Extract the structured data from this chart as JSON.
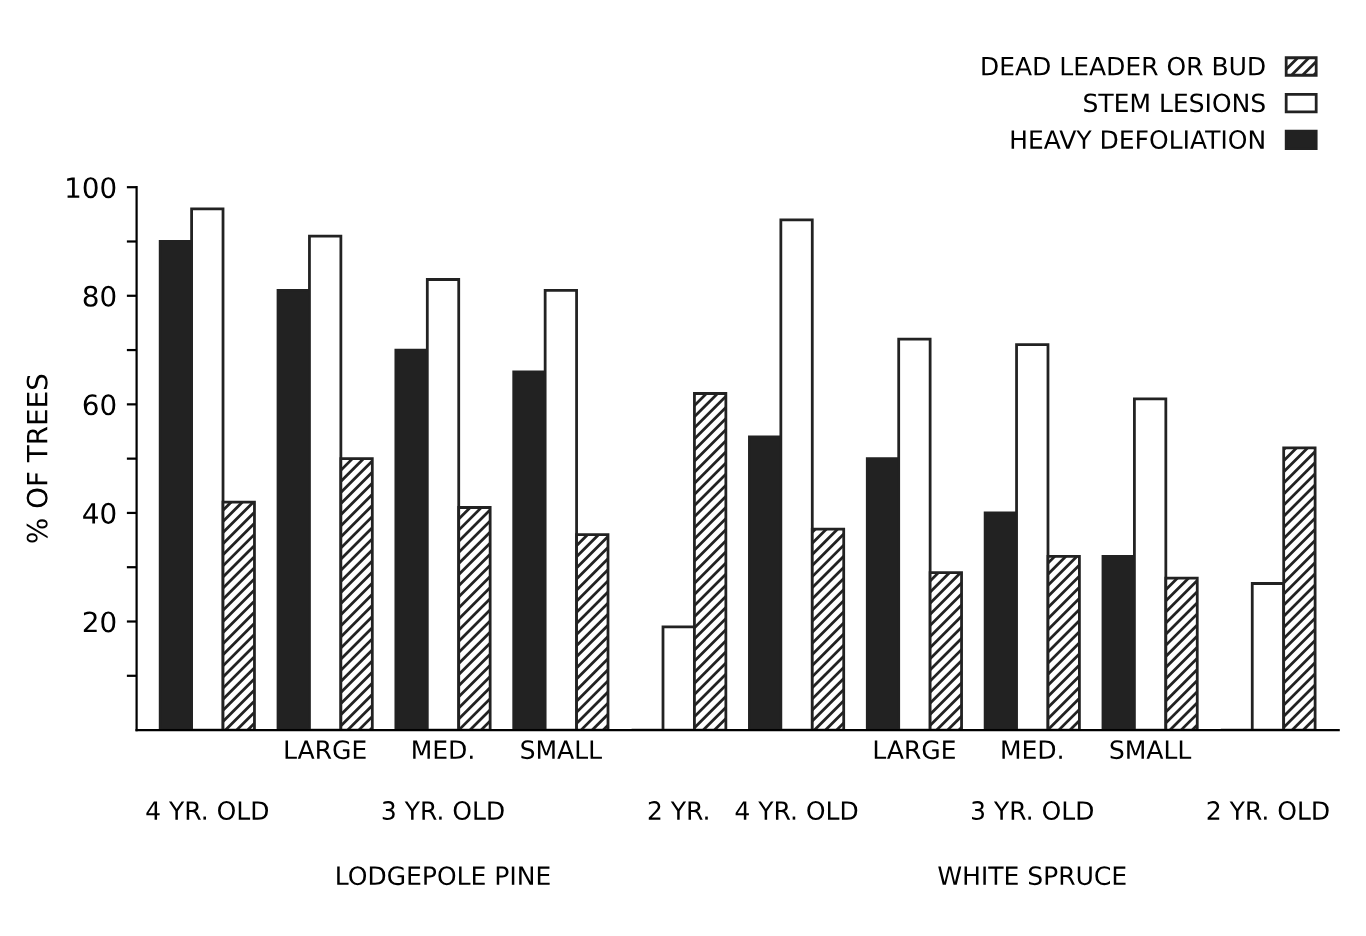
{
  "chart_data": {
    "type": "bar",
    "ylabel": "% OF TREES",
    "categories": [
      null,
      "LARGE",
      "MED.",
      "SMALL",
      null,
      null,
      "LARGE",
      "MED.",
      "SMALL",
      null
    ],
    "series": [
      {
        "name": "HEAVY DEFOLIATION",
        "color": "#222222",
        "values": [
          90,
          81,
          70,
          66,
          0,
          54,
          50,
          40,
          32,
          0
        ]
      },
      {
        "name": "STEM LESIONS",
        "color": "#ffffff",
        "values": [
          96,
          91,
          83,
          81,
          19,
          94,
          72,
          71,
          61,
          27
        ]
      },
      {
        "name": "DEAD LEADER OR BUD",
        "color": "#222222",
        "values": [
          42,
          50,
          41,
          36,
          62,
          37,
          29,
          32,
          28,
          52
        ]
      }
    ],
    "ylim": [
      0,
      100
    ],
    "yticks": [
      {
        "value": 10,
        "label": null
      },
      20,
      {
        "value": 30,
        "label": null
      },
      40,
      {
        "value": 50,
        "label": null
      },
      60,
      {
        "value": 70,
        "label": null
      },
      80,
      {
        "value": 90,
        "label": null
      },
      100
    ],
    "grid": false,
    "legend": "top right",
    "annotations": [
      "4 YR. OLD",
      "3 YR. OLD",
      "2 YR.",
      "4 YR. OLD",
      "3 YR. OLD",
      "2 YR. OLD",
      "LODGEPOLE PINE",
      "WHITE SPRUCE"
    ]
  }
}
